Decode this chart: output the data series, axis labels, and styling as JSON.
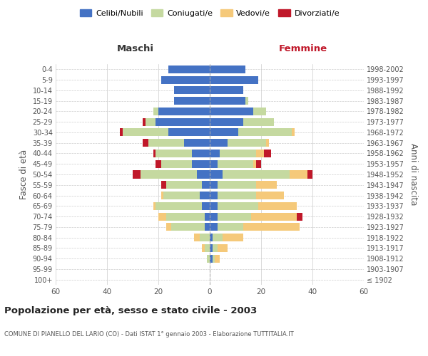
{
  "age_groups": [
    "100+",
    "95-99",
    "90-94",
    "85-89",
    "80-84",
    "75-79",
    "70-74",
    "65-69",
    "60-64",
    "55-59",
    "50-54",
    "45-49",
    "40-44",
    "35-39",
    "30-34",
    "25-29",
    "20-24",
    "15-19",
    "10-14",
    "5-9",
    "0-4"
  ],
  "birth_years": [
    "≤ 1902",
    "1903-1907",
    "1908-1912",
    "1913-1917",
    "1918-1922",
    "1923-1927",
    "1928-1932",
    "1933-1937",
    "1938-1942",
    "1943-1947",
    "1948-1952",
    "1953-1957",
    "1958-1962",
    "1963-1967",
    "1968-1972",
    "1973-1977",
    "1978-1982",
    "1983-1987",
    "1988-1992",
    "1993-1997",
    "1998-2002"
  ],
  "maschi": {
    "celibi": [
      0,
      0,
      0,
      0,
      0,
      2,
      2,
      3,
      4,
      3,
      5,
      7,
      7,
      10,
      16,
      21,
      20,
      14,
      14,
      19,
      16
    ],
    "coniugati": [
      0,
      0,
      1,
      2,
      4,
      13,
      15,
      18,
      14,
      14,
      22,
      12,
      14,
      14,
      18,
      4,
      2,
      0,
      0,
      0,
      0
    ],
    "vedovi": [
      0,
      0,
      0,
      1,
      2,
      2,
      3,
      1,
      1,
      0,
      0,
      0,
      0,
      0,
      0,
      0,
      0,
      0,
      0,
      0,
      0
    ],
    "divorziati": [
      0,
      0,
      0,
      0,
      0,
      0,
      0,
      0,
      0,
      2,
      3,
      2,
      1,
      2,
      1,
      1,
      0,
      0,
      0,
      0,
      0
    ]
  },
  "femmine": {
    "nubili": [
      0,
      0,
      1,
      1,
      1,
      3,
      3,
      3,
      3,
      3,
      5,
      3,
      4,
      7,
      11,
      13,
      17,
      14,
      13,
      19,
      14
    ],
    "coniugate": [
      0,
      0,
      1,
      2,
      4,
      10,
      13,
      16,
      15,
      15,
      26,
      14,
      14,
      15,
      21,
      12,
      5,
      1,
      0,
      0,
      0
    ],
    "vedove": [
      0,
      0,
      2,
      4,
      8,
      22,
      18,
      15,
      11,
      8,
      7,
      1,
      3,
      1,
      1,
      0,
      0,
      0,
      0,
      0,
      0
    ],
    "divorziate": [
      0,
      0,
      0,
      0,
      0,
      0,
      2,
      0,
      0,
      0,
      2,
      2,
      3,
      0,
      0,
      0,
      0,
      0,
      0,
      0,
      0
    ]
  },
  "colors": {
    "celibi_nubili": "#4472C4",
    "coniugati_e": "#C5D9A0",
    "vedovi_e": "#F5C97A",
    "divorziati_e": "#C0182A"
  },
  "xlim": 60,
  "xlabel_left": "Maschi",
  "xlabel_right": "Femmine",
  "ylabel_left": "Fasce di età",
  "ylabel_right": "Anni di nascita",
  "title": "Popolazione per età, sesso e stato civile - 2003",
  "subtitle": "COMUNE DI PIANELLO DEL LARIO (CO) - Dati ISTAT 1° gennaio 2003 - Elaborazione TUTTITALIA.IT",
  "legend_labels": [
    "Celibi/Nubili",
    "Coniugati/e",
    "Vedovi/e",
    "Divorziati/e"
  ],
  "bg_color": "#FFFFFF",
  "grid_color": "#CCCCCC"
}
